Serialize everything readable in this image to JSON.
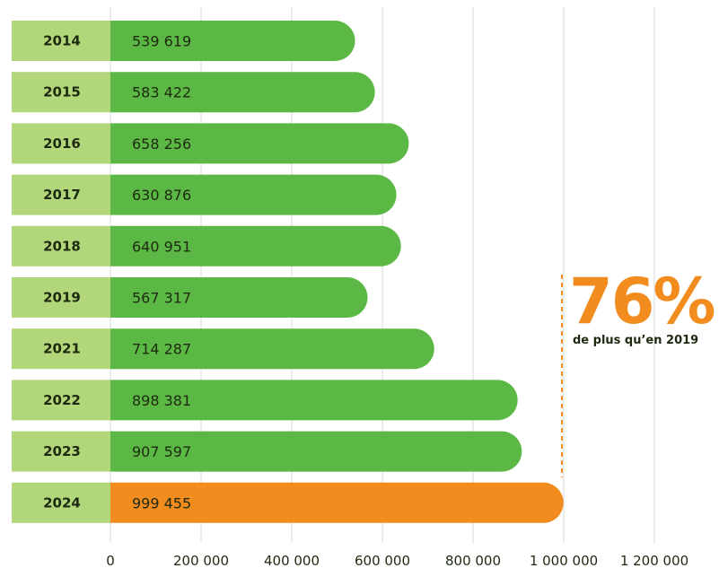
{
  "chart_data": {
    "type": "bar",
    "orientation": "horizontal",
    "categories": [
      "2014",
      "2015",
      "2016",
      "2017",
      "2018",
      "2019",
      "2021",
      "2022",
      "2023",
      "2024"
    ],
    "values": [
      539619,
      583422,
      658256,
      630876,
      640951,
      567317,
      714287,
      898381,
      907597,
      999455
    ],
    "value_labels": [
      "539 619",
      "583 422",
      "658 256",
      "630 876",
      "640 951",
      "567 317",
      "714 287",
      "898 381",
      "907 597",
      "999 455"
    ],
    "x_ticks": [
      0,
      200000,
      400000,
      600000,
      800000,
      1000000,
      1200000
    ],
    "x_tick_labels": [
      "0",
      "200 000",
      "400 000",
      "600 000",
      "800 000",
      "1 000 000",
      "1 200 000"
    ],
    "xlim": [
      0,
      1200000
    ],
    "grid": "vertical",
    "highlight_category": "2024",
    "colors": {
      "bar": "#5cb845",
      "bar_highlight": "#f28c1e",
      "year_label_bg": "#b2d67a",
      "grid": "#d8d8d8",
      "text": "#1e2a10"
    }
  },
  "callout": {
    "percent": "76%",
    "text": "de plus qu’en 2019",
    "color": "#f28c1e"
  }
}
